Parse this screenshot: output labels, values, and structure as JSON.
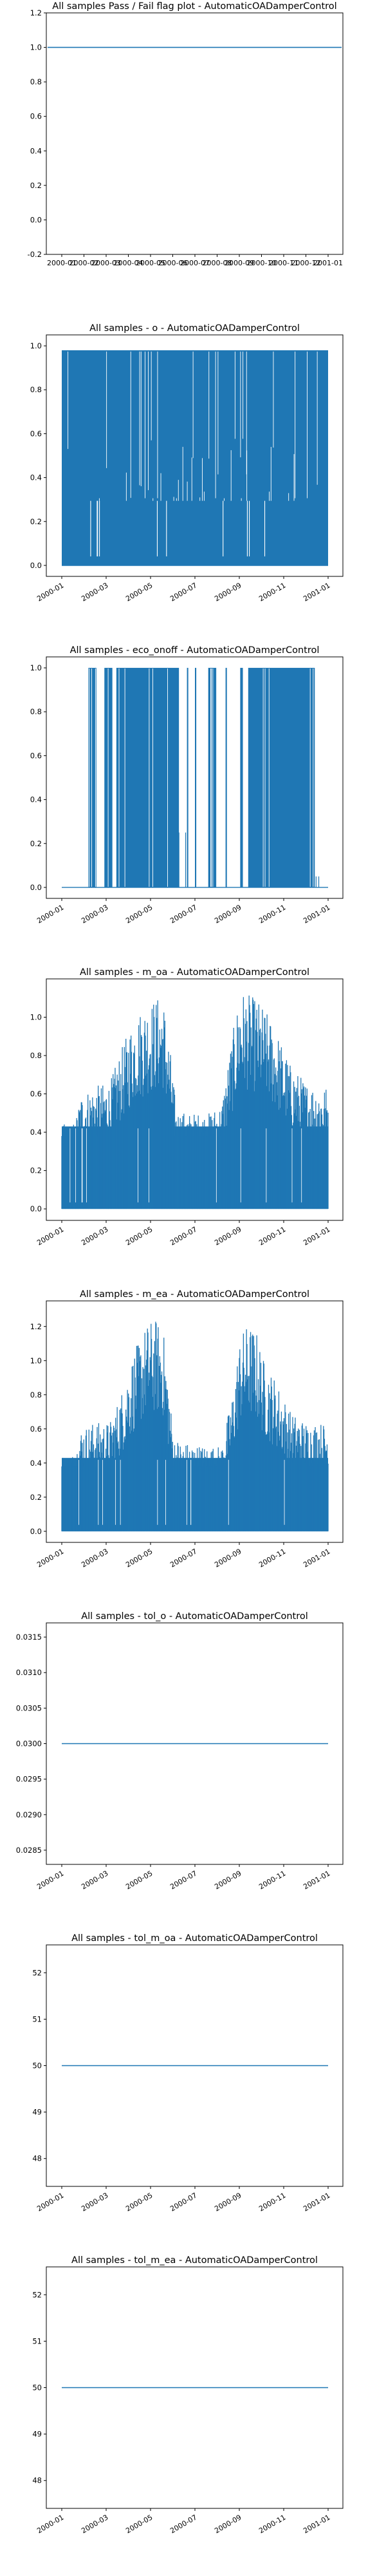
{
  "chart_data": [
    {
      "type": "line",
      "title": "All samples Pass / Fail flag plot - AutomaticOADamperControl",
      "xlabel": "",
      "ylabel": "",
      "x_ticks": [
        "2000-01",
        "2000-02",
        "2000-03",
        "2000-04",
        "2000-05",
        "2000-06",
        "2000-07",
        "2000-08",
        "2000-09",
        "2000-10",
        "2000-11",
        "2000-12",
        "2001-01"
      ],
      "x_tick_rotation": 0,
      "yticks": [
        "-0.2",
        "0.0",
        "0.2",
        "0.4",
        "0.6",
        "0.8",
        "1.0",
        "1.2"
      ],
      "ylim": [
        -0.2,
        1.2
      ],
      "series": [
        {
          "style": "constant",
          "value": 1.0
        }
      ]
    },
    {
      "type": "line",
      "title": "All samples - o - AutomaticOADamperControl",
      "xlabel": "",
      "ylabel": "",
      "x_ticks": [
        "2000-01",
        "2000-03",
        "2000-05",
        "2000-07",
        "2000-09",
        "2000-11",
        "2001-01"
      ],
      "x_tick_rotation": 30,
      "yticks": [
        "0.0",
        "0.2",
        "0.4",
        "0.6",
        "0.8",
        "1.0"
      ],
      "ylim": [
        -0.05,
        1.05
      ],
      "series": [
        {
          "style": "dense",
          "min": 0.0,
          "max": 0.98,
          "mid": 0.3,
          "gaps": []
        }
      ]
    },
    {
      "type": "line",
      "title": "All samples - eco_onoff - AutomaticOADamperControl",
      "xlabel": "",
      "ylabel": "",
      "x_ticks": [
        "2000-01",
        "2000-03",
        "2000-05",
        "2000-07",
        "2000-09",
        "2000-11",
        "2001-01"
      ],
      "x_tick_rotation": 30,
      "yticks": [
        "0.0",
        "0.2",
        "0.4",
        "0.6",
        "0.8",
        "1.0"
      ],
      "ylim": [
        -0.05,
        1.05
      ],
      "series": [
        {
          "style": "binary",
          "min": 0.0,
          "max": 1.0
        }
      ]
    },
    {
      "type": "line",
      "title": "All samples - m_oa - AutomaticOADamperControl",
      "xlabel": "",
      "ylabel": "",
      "x_ticks": [
        "2000-01",
        "2000-03",
        "2000-05",
        "2000-07",
        "2000-09",
        "2000-11",
        "2001-01"
      ],
      "x_tick_rotation": 30,
      "yticks": [
        "0.0",
        "0.2",
        "0.4",
        "0.6",
        "0.8",
        "1.0"
      ],
      "ylim": [
        -0.06,
        1.2
      ],
      "series": [
        {
          "style": "envelope",
          "min": 0.0,
          "max_approx": 1.15
        }
      ]
    },
    {
      "type": "line",
      "title": "All samples - m_ea - AutomaticOADamperControl",
      "xlabel": "",
      "ylabel": "",
      "x_ticks": [
        "2000-01",
        "2000-03",
        "2000-05",
        "2000-07",
        "2000-09",
        "2000-11",
        "2001-01"
      ],
      "x_tick_rotation": 30,
      "yticks": [
        "0.0",
        "0.2",
        "0.4",
        "0.6",
        "0.8",
        "1.0",
        "1.2"
      ],
      "ylim": [
        -0.065,
        1.35
      ],
      "series": [
        {
          "style": "envelope",
          "min": 0.0,
          "max_approx": 1.28
        }
      ]
    },
    {
      "type": "line",
      "title": "All samples - tol_o - AutomaticOADamperControl",
      "xlabel": "",
      "ylabel": "",
      "x_ticks": [
        "2000-01",
        "2000-03",
        "2000-05",
        "2000-07",
        "2000-09",
        "2000-11",
        "2001-01"
      ],
      "x_tick_rotation": 30,
      "yticks": [
        "0.0285",
        "0.0290",
        "0.0295",
        "0.0300",
        "0.0305",
        "0.0310",
        "0.0315"
      ],
      "ylim": [
        0.0283,
        0.0317
      ],
      "series": [
        {
          "style": "constant",
          "value": 0.03
        }
      ]
    },
    {
      "type": "line",
      "title": "All samples - tol_m_oa - AutomaticOADamperControl",
      "xlabel": "",
      "ylabel": "",
      "x_ticks": [
        "2000-01",
        "2000-03",
        "2000-05",
        "2000-07",
        "2000-09",
        "2000-11",
        "2001-01"
      ],
      "x_tick_rotation": 30,
      "yticks": [
        "48",
        "49",
        "50",
        "51",
        "52"
      ],
      "ylim": [
        47.4,
        52.6
      ],
      "series": [
        {
          "style": "constant",
          "value": 50
        }
      ]
    },
    {
      "type": "line",
      "title": "All samples - tol_m_ea - AutomaticOADamperControl",
      "xlabel": "",
      "ylabel": "",
      "x_ticks": [
        "2000-01",
        "2000-03",
        "2000-05",
        "2000-07",
        "2000-09",
        "2000-11",
        "2001-01"
      ],
      "x_tick_rotation": 30,
      "yticks": [
        "48",
        "49",
        "50",
        "51",
        "52"
      ],
      "ylim": [
        47.4,
        52.6
      ],
      "series": [
        {
          "style": "constant",
          "value": 50
        }
      ]
    }
  ],
  "colors": {
    "series": "#1f77b4",
    "axes": "#000000"
  }
}
